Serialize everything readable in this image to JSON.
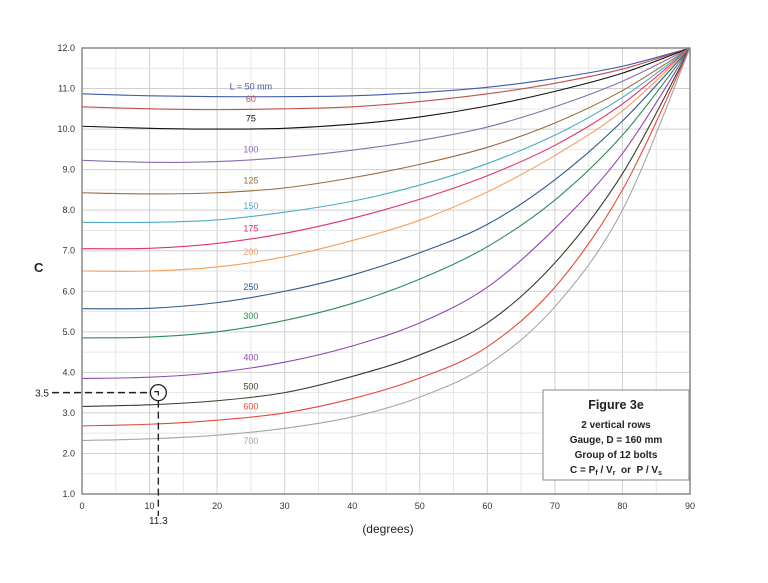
{
  "chart_data": {
    "type": "line",
    "title": "",
    "xlabel": "(degrees)",
    "ylabel": "C",
    "xlim": [
      0,
      90
    ],
    "ylim": [
      1.0,
      12.0
    ],
    "x_ticks": [
      "0",
      "10",
      "20",
      "30",
      "40",
      "50",
      "60",
      "70",
      "80",
      "90"
    ],
    "y_ticks": [
      "1.0",
      "2.0",
      "3.0",
      "4.0",
      "5.0",
      "6.0",
      "7.0",
      "8.0",
      "9.0",
      "10.0",
      "11.0",
      "12.0"
    ],
    "grid": true,
    "x": [
      0,
      10,
      20,
      30,
      40,
      50,
      60,
      70,
      80,
      90
    ],
    "series": [
      {
        "name": "L = 50 mm",
        "color": "#3f5aa6",
        "values": [
          10.87,
          10.82,
          10.8,
          10.8,
          10.82,
          10.9,
          11.03,
          11.25,
          11.55,
          12.0
        ]
      },
      {
        "name": "60",
        "color": "#c0504d",
        "values": [
          10.55,
          10.5,
          10.48,
          10.5,
          10.55,
          10.68,
          10.87,
          11.13,
          11.48,
          12.0
        ]
      },
      {
        "name": "75",
        "color": "#111111",
        "values": [
          10.07,
          10.02,
          10.0,
          10.02,
          10.12,
          10.3,
          10.57,
          10.93,
          11.38,
          12.0
        ]
      },
      {
        "name": "100",
        "color": "#8a6db0",
        "values": [
          9.23,
          9.18,
          9.2,
          9.3,
          9.48,
          9.72,
          10.05,
          10.55,
          11.18,
          12.0
        ]
      },
      {
        "name": "125",
        "color": "#9c6b3c",
        "values": [
          8.43,
          8.4,
          8.43,
          8.55,
          8.8,
          9.13,
          9.55,
          10.15,
          10.95,
          12.0
        ]
      },
      {
        "name": "150",
        "color": "#4bacc6",
        "values": [
          7.7,
          7.7,
          7.76,
          7.95,
          8.22,
          8.62,
          9.15,
          9.85,
          10.78,
          12.0
        ]
      },
      {
        "name": "175",
        "color": "#e0306a",
        "values": [
          7.05,
          7.06,
          7.18,
          7.43,
          7.8,
          8.27,
          8.85,
          9.6,
          10.62,
          12.0
        ]
      },
      {
        "name": "200",
        "color": "#f2a05a",
        "values": [
          6.5,
          6.5,
          6.6,
          6.85,
          7.25,
          7.75,
          8.45,
          9.35,
          10.45,
          12.0
        ]
      },
      {
        "name": "250",
        "color": "#2e5a8c",
        "values": [
          5.57,
          5.58,
          5.72,
          6.0,
          6.4,
          6.95,
          7.65,
          8.75,
          10.2,
          12.0
        ]
      },
      {
        "name": "300",
        "color": "#2e8b57",
        "values": [
          4.85,
          4.87,
          5.0,
          5.28,
          5.7,
          6.3,
          7.1,
          8.25,
          9.85,
          12.0
        ]
      },
      {
        "name": "400",
        "color": "#9146b0",
        "values": [
          3.85,
          3.88,
          4.0,
          4.25,
          4.65,
          5.22,
          6.1,
          7.55,
          9.4,
          12.0
        ]
      },
      {
        "name": "500",
        "color": "#3d3d2a",
        "values": [
          3.16,
          3.2,
          3.3,
          3.5,
          3.9,
          4.43,
          5.22,
          6.7,
          8.9,
          12.0
        ]
      },
      {
        "name": "600",
        "color": "#e8473a",
        "values": [
          2.68,
          2.72,
          2.82,
          3.0,
          3.35,
          3.86,
          4.63,
          6.1,
          8.5,
          12.0
        ]
      },
      {
        "name": "700",
        "color": "#a6a6a6",
        "values": [
          2.32,
          2.36,
          2.45,
          2.62,
          2.9,
          3.39,
          4.18,
          5.62,
          8.0,
          12.0
        ]
      }
    ],
    "annotation": {
      "x": 11.3,
      "y": 3.5,
      "x_label": "11.3",
      "y_label": "3.5"
    },
    "legend_box": {
      "title": "Figure 3e",
      "lines": [
        "2 vertical rows",
        "Gauge, D = 160 mm",
        "Group of 12 bolts"
      ],
      "formula": {
        "a": "C = P",
        "a_sub": "f",
        "b": " / V",
        "b_sub": "r",
        "c": "  or  P / V",
        "c_sub": "s"
      }
    }
  }
}
